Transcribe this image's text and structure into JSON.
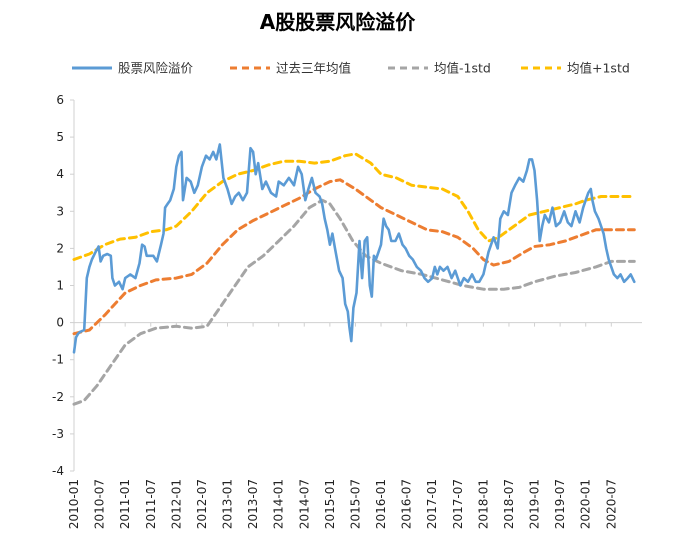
{
  "chart_data": {
    "type": "line",
    "title": "A股股票风险溢价",
    "xlabel": "",
    "ylabel": "",
    "ylim": [
      -4,
      6
    ],
    "y_ticks": [
      -4,
      -3,
      -2,
      -1,
      0,
      1,
      2,
      3,
      4,
      5,
      6
    ],
    "x_ticks": [
      "2010-01",
      "2010-07",
      "2011-01",
      "2011-07",
      "2012-01",
      "2012-07",
      "2013-01",
      "2013-07",
      "2014-01",
      "2014-07",
      "2015-01",
      "2015-07",
      "2016-01",
      "2016-07",
      "2017-01",
      "2017-07",
      "2018-01",
      "2018-07",
      "2019-01",
      "2019-07",
      "2020-01",
      "2020-07"
    ],
    "x_range": [
      2010.0,
      2021.1
    ],
    "grid": false,
    "legend_position": "top",
    "series": [
      {
        "name": "股票风险溢价",
        "color": "#5b9bd5",
        "style": "solid",
        "points": [
          [
            2010.0,
            -0.8
          ],
          [
            2010.04,
            -0.4
          ],
          [
            2010.08,
            -0.3
          ],
          [
            2010.12,
            -0.25
          ],
          [
            2010.2,
            -0.2
          ],
          [
            2010.25,
            1.2
          ],
          [
            2010.3,
            1.5
          ],
          [
            2010.35,
            1.7
          ],
          [
            2010.42,
            1.9
          ],
          [
            2010.48,
            2.05
          ],
          [
            2010.52,
            1.65
          ],
          [
            2010.57,
            1.8
          ],
          [
            2010.65,
            1.85
          ],
          [
            2010.72,
            1.8
          ],
          [
            2010.75,
            1.2
          ],
          [
            2010.8,
            1.0
          ],
          [
            2010.88,
            1.1
          ],
          [
            2010.95,
            0.9
          ],
          [
            2011.0,
            1.2
          ],
          [
            2011.1,
            1.3
          ],
          [
            2011.2,
            1.2
          ],
          [
            2011.28,
            1.6
          ],
          [
            2011.33,
            2.1
          ],
          [
            2011.38,
            2.05
          ],
          [
            2011.42,
            1.8
          ],
          [
            2011.48,
            1.8
          ],
          [
            2011.55,
            1.8
          ],
          [
            2011.62,
            1.65
          ],
          [
            2011.7,
            2.1
          ],
          [
            2011.75,
            2.4
          ],
          [
            2011.78,
            3.1
          ],
          [
            2011.83,
            3.2
          ],
          [
            2011.88,
            3.3
          ],
          [
            2011.95,
            3.6
          ],
          [
            2012.0,
            4.2
          ],
          [
            2012.05,
            4.5
          ],
          [
            2012.1,
            4.6
          ],
          [
            2012.13,
            3.3
          ],
          [
            2012.2,
            3.9
          ],
          [
            2012.28,
            3.8
          ],
          [
            2012.35,
            3.5
          ],
          [
            2012.42,
            3.7
          ],
          [
            2012.5,
            4.2
          ],
          [
            2012.58,
            4.5
          ],
          [
            2012.65,
            4.4
          ],
          [
            2012.72,
            4.6
          ],
          [
            2012.78,
            4.4
          ],
          [
            2012.85,
            4.8
          ],
          [
            2012.92,
            3.9
          ],
          [
            2013.0,
            3.6
          ],
          [
            2013.08,
            3.2
          ],
          [
            2013.15,
            3.4
          ],
          [
            2013.22,
            3.5
          ],
          [
            2013.3,
            3.3
          ],
          [
            2013.38,
            3.5
          ],
          [
            2013.45,
            4.7
          ],
          [
            2013.5,
            4.6
          ],
          [
            2013.55,
            4.0
          ],
          [
            2013.6,
            4.3
          ],
          [
            2013.68,
            3.6
          ],
          [
            2013.75,
            3.8
          ],
          [
            2013.85,
            3.5
          ],
          [
            2013.95,
            3.4
          ],
          [
            2014.0,
            3.8
          ],
          [
            2014.1,
            3.7
          ],
          [
            2014.2,
            3.9
          ],
          [
            2014.3,
            3.7
          ],
          [
            2014.38,
            4.2
          ],
          [
            2014.45,
            4.0
          ],
          [
            2014.52,
            3.3
          ],
          [
            2014.58,
            3.6
          ],
          [
            2014.65,
            3.9
          ],
          [
            2014.72,
            3.5
          ],
          [
            2014.8,
            3.4
          ],
          [
            2014.85,
            3.2
          ],
          [
            2014.9,
            2.8
          ],
          [
            2014.95,
            2.5
          ],
          [
            2015.0,
            2.1
          ],
          [
            2015.05,
            2.4
          ],
          [
            2015.1,
            2.0
          ],
          [
            2015.18,
            1.4
          ],
          [
            2015.25,
            1.2
          ],
          [
            2015.3,
            0.5
          ],
          [
            2015.35,
            0.3
          ],
          [
            2015.38,
            -0.1
          ],
          [
            2015.42,
            -0.5
          ],
          [
            2015.46,
            0.4
          ],
          [
            2015.52,
            0.8
          ],
          [
            2015.58,
            2.2
          ],
          [
            2015.63,
            1.2
          ],
          [
            2015.68,
            2.2
          ],
          [
            2015.73,
            2.3
          ],
          [
            2015.78,
            1.0
          ],
          [
            2015.82,
            0.7
          ],
          [
            2015.86,
            1.8
          ],
          [
            2015.9,
            1.7
          ],
          [
            2015.95,
            1.9
          ],
          [
            2016.0,
            2.1
          ],
          [
            2016.05,
            2.8
          ],
          [
            2016.1,
            2.6
          ],
          [
            2016.15,
            2.5
          ],
          [
            2016.2,
            2.2
          ],
          [
            2016.28,
            2.2
          ],
          [
            2016.35,
            2.4
          ],
          [
            2016.42,
            2.1
          ],
          [
            2016.48,
            2.0
          ],
          [
            2016.55,
            1.8
          ],
          [
            2016.62,
            1.7
          ],
          [
            2016.7,
            1.5
          ],
          [
            2016.78,
            1.4
          ],
          [
            2016.85,
            1.2
          ],
          [
            2016.92,
            1.1
          ],
          [
            2017.0,
            1.2
          ],
          [
            2017.05,
            1.5
          ],
          [
            2017.1,
            1.3
          ],
          [
            2017.15,
            1.5
          ],
          [
            2017.22,
            1.4
          ],
          [
            2017.3,
            1.5
          ],
          [
            2017.38,
            1.2
          ],
          [
            2017.45,
            1.4
          ],
          [
            2017.55,
            1.0
          ],
          [
            2017.62,
            1.2
          ],
          [
            2017.7,
            1.1
          ],
          [
            2017.78,
            1.3
          ],
          [
            2017.85,
            1.1
          ],
          [
            2017.92,
            1.1
          ],
          [
            2018.0,
            1.3
          ],
          [
            2018.1,
            1.9
          ],
          [
            2018.2,
            2.3
          ],
          [
            2018.28,
            2.0
          ],
          [
            2018.33,
            2.8
          ],
          [
            2018.4,
            3.0
          ],
          [
            2018.48,
            2.9
          ],
          [
            2018.55,
            3.5
          ],
          [
            2018.62,
            3.7
          ],
          [
            2018.7,
            3.9
          ],
          [
            2018.78,
            3.8
          ],
          [
            2018.85,
            4.1
          ],
          [
            2018.9,
            4.4
          ],
          [
            2018.95,
            4.4
          ],
          [
            2019.0,
            4.1
          ],
          [
            2019.05,
            3.3
          ],
          [
            2019.1,
            2.2
          ],
          [
            2019.15,
            2.6
          ],
          [
            2019.2,
            2.9
          ],
          [
            2019.28,
            2.7
          ],
          [
            2019.35,
            3.1
          ],
          [
            2019.42,
            2.6
          ],
          [
            2019.5,
            2.7
          ],
          [
            2019.58,
            3.0
          ],
          [
            2019.65,
            2.7
          ],
          [
            2019.72,
            2.6
          ],
          [
            2019.8,
            3.0
          ],
          [
            2019.88,
            2.7
          ],
          [
            2019.95,
            3.1
          ],
          [
            2020.0,
            3.3
          ],
          [
            2020.05,
            3.5
          ],
          [
            2020.1,
            3.6
          ],
          [
            2020.13,
            3.3
          ],
          [
            2020.18,
            3.0
          ],
          [
            2020.25,
            2.8
          ],
          [
            2020.35,
            2.4
          ],
          [
            2020.4,
            2.0
          ],
          [
            2020.45,
            1.7
          ],
          [
            2020.5,
            1.5
          ],
          [
            2020.55,
            1.3
          ],
          [
            2020.62,
            1.2
          ],
          [
            2020.68,
            1.3
          ],
          [
            2020.75,
            1.1
          ],
          [
            2020.82,
            1.2
          ],
          [
            2020.88,
            1.3
          ],
          [
            2020.95,
            1.1
          ]
        ]
      },
      {
        "name": "过去三年均值",
        "color": "#ed7d31",
        "style": "dashed",
        "points": [
          [
            2010.0,
            -0.3
          ],
          [
            2010.3,
            -0.2
          ],
          [
            2010.6,
            0.2
          ],
          [
            2010.8,
            0.5
          ],
          [
            2011.0,
            0.8
          ],
          [
            2011.3,
            1.0
          ],
          [
            2011.6,
            1.15
          ],
          [
            2012.0,
            1.2
          ],
          [
            2012.3,
            1.3
          ],
          [
            2012.6,
            1.6
          ],
          [
            2012.9,
            2.1
          ],
          [
            2013.2,
            2.5
          ],
          [
            2013.5,
            2.75
          ],
          [
            2013.8,
            2.95
          ],
          [
            2014.1,
            3.15
          ],
          [
            2014.4,
            3.35
          ],
          [
            2014.7,
            3.6
          ],
          [
            2015.0,
            3.8
          ],
          [
            2015.2,
            3.85
          ],
          [
            2015.5,
            3.6
          ],
          [
            2015.8,
            3.3
          ],
          [
            2016.0,
            3.1
          ],
          [
            2016.3,
            2.9
          ],
          [
            2016.6,
            2.7
          ],
          [
            2016.9,
            2.5
          ],
          [
            2017.2,
            2.45
          ],
          [
            2017.5,
            2.3
          ],
          [
            2017.8,
            2.0
          ],
          [
            2018.0,
            1.7
          ],
          [
            2018.2,
            1.55
          ],
          [
            2018.5,
            1.65
          ],
          [
            2018.8,
            1.9
          ],
          [
            2019.0,
            2.05
          ],
          [
            2019.3,
            2.1
          ],
          [
            2019.6,
            2.2
          ],
          [
            2019.9,
            2.35
          ],
          [
            2020.2,
            2.5
          ],
          [
            2020.5,
            2.5
          ],
          [
            2020.95,
            2.5
          ]
        ]
      },
      {
        "name": "均值-1std",
        "color": "#a5a5a5",
        "style": "dashed",
        "points": [
          [
            2010.0,
            -2.2
          ],
          [
            2010.2,
            -2.1
          ],
          [
            2010.45,
            -1.7
          ],
          [
            2010.7,
            -1.2
          ],
          [
            2011.0,
            -0.6
          ],
          [
            2011.3,
            -0.3
          ],
          [
            2011.6,
            -0.15
          ],
          [
            2012.0,
            -0.1
          ],
          [
            2012.3,
            -0.15
          ],
          [
            2012.6,
            -0.1
          ],
          [
            2012.85,
            0.4
          ],
          [
            2013.1,
            0.9
          ],
          [
            2013.4,
            1.5
          ],
          [
            2013.7,
            1.8
          ],
          [
            2014.0,
            2.2
          ],
          [
            2014.3,
            2.6
          ],
          [
            2014.6,
            3.1
          ],
          [
            2014.85,
            3.3
          ],
          [
            2015.0,
            3.2
          ],
          [
            2015.2,
            2.8
          ],
          [
            2015.45,
            2.2
          ],
          [
            2015.7,
            1.8
          ],
          [
            2016.0,
            1.6
          ],
          [
            2016.4,
            1.4
          ],
          [
            2016.8,
            1.3
          ],
          [
            2017.2,
            1.15
          ],
          [
            2017.6,
            1.0
          ],
          [
            2018.0,
            0.9
          ],
          [
            2018.4,
            0.9
          ],
          [
            2018.7,
            0.95
          ],
          [
            2019.0,
            1.1
          ],
          [
            2019.4,
            1.25
          ],
          [
            2019.8,
            1.35
          ],
          [
            2020.2,
            1.5
          ],
          [
            2020.5,
            1.65
          ],
          [
            2020.95,
            1.65
          ]
        ]
      },
      {
        "name": "均值+1std",
        "color": "#ffc000",
        "style": "dashed",
        "points": [
          [
            2010.0,
            1.7
          ],
          [
            2010.3,
            1.85
          ],
          [
            2010.6,
            2.1
          ],
          [
            2010.9,
            2.25
          ],
          [
            2011.2,
            2.3
          ],
          [
            2011.5,
            2.45
          ],
          [
            2011.8,
            2.5
          ],
          [
            2012.0,
            2.6
          ],
          [
            2012.3,
            3.0
          ],
          [
            2012.6,
            3.5
          ],
          [
            2012.9,
            3.8
          ],
          [
            2013.2,
            4.0
          ],
          [
            2013.5,
            4.1
          ],
          [
            2013.8,
            4.25
          ],
          [
            2014.1,
            4.35
          ],
          [
            2014.4,
            4.35
          ],
          [
            2014.7,
            4.3
          ],
          [
            2015.0,
            4.35
          ],
          [
            2015.3,
            4.5
          ],
          [
            2015.5,
            4.55
          ],
          [
            2015.8,
            4.3
          ],
          [
            2016.0,
            4.0
          ],
          [
            2016.3,
            3.9
          ],
          [
            2016.6,
            3.7
          ],
          [
            2016.9,
            3.65
          ],
          [
            2017.2,
            3.6
          ],
          [
            2017.5,
            3.4
          ],
          [
            2017.7,
            3.0
          ],
          [
            2017.9,
            2.5
          ],
          [
            2018.1,
            2.2
          ],
          [
            2018.3,
            2.3
          ],
          [
            2018.6,
            2.6
          ],
          [
            2018.9,
            2.9
          ],
          [
            2019.2,
            3.0
          ],
          [
            2019.5,
            3.1
          ],
          [
            2019.8,
            3.2
          ],
          [
            2020.0,
            3.3
          ],
          [
            2020.3,
            3.4
          ],
          [
            2020.95,
            3.4
          ]
        ]
      }
    ]
  }
}
